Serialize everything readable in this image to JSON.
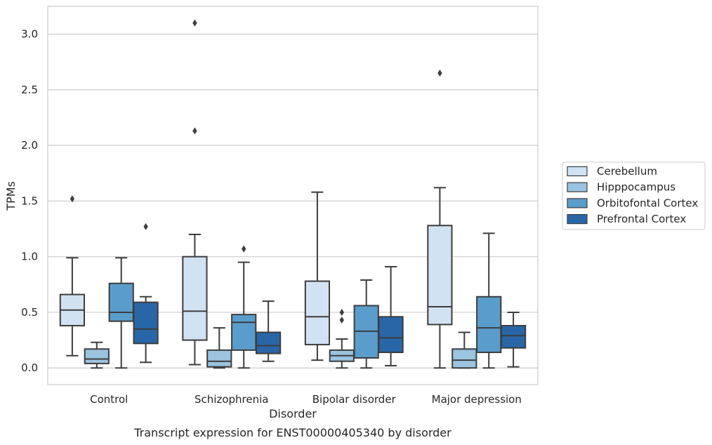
{
  "caption": "Transcript expression for ENST00000405340 by disorder",
  "chart_data": {
    "type": "box",
    "title": "",
    "xlabel": "Disorder",
    "ylabel": "TPMs",
    "ylim": [
      -0.15,
      3.25
    ],
    "yticks": [
      "0.0",
      "0.5",
      "1.0",
      "1.5",
      "2.0",
      "2.5",
      "3.0"
    ],
    "grid": "horizontal",
    "legend_position": "right",
    "categories": [
      "Control",
      "Schizophrenia",
      "Bipolar disorder",
      "Major depression"
    ],
    "series": [
      {
        "name": "Cerebellum",
        "color": "#d1e2f2",
        "boxes": [
          {
            "whisker_low": 0.11,
            "q1": 0.38,
            "median": 0.52,
            "q3": 0.66,
            "whisker_high": 0.99,
            "outliers": [
              1.52
            ]
          },
          {
            "whisker_low": 0.03,
            "q1": 0.25,
            "median": 0.51,
            "q3": 1.0,
            "whisker_high": 1.2,
            "outliers": [
              2.13,
              3.1
            ]
          },
          {
            "whisker_low": 0.07,
            "q1": 0.21,
            "median": 0.46,
            "q3": 0.78,
            "whisker_high": 1.58,
            "outliers": []
          },
          {
            "whisker_low": 0.0,
            "q1": 0.39,
            "median": 0.55,
            "q3": 1.28,
            "whisker_high": 1.62,
            "outliers": [
              2.65
            ]
          }
        ]
      },
      {
        "name": "Hipppocampus",
        "color": "#9ac4e0",
        "boxes": [
          {
            "whisker_low": 0.0,
            "q1": 0.04,
            "median": 0.08,
            "q3": 0.17,
            "whisker_high": 0.23,
            "outliers": []
          },
          {
            "whisker_low": 0.0,
            "q1": 0.01,
            "median": 0.06,
            "q3": 0.16,
            "whisker_high": 0.36,
            "outliers": []
          },
          {
            "whisker_low": 0.0,
            "q1": 0.06,
            "median": 0.11,
            "q3": 0.16,
            "whisker_high": 0.26,
            "outliers": [
              0.43,
              0.5
            ]
          },
          {
            "whisker_low": 0.0,
            "q1": 0.0,
            "median": 0.07,
            "q3": 0.17,
            "whisker_high": 0.32,
            "outliers": []
          }
        ]
      },
      {
        "name": "Orbitofontal Cortex",
        "color": "#5a9dcc",
        "boxes": [
          {
            "whisker_low": 0.0,
            "q1": 0.42,
            "median": 0.5,
            "q3": 0.76,
            "whisker_high": 0.99,
            "outliers": []
          },
          {
            "whisker_low": 0.0,
            "q1": 0.16,
            "median": 0.41,
            "q3": 0.48,
            "whisker_high": 0.95,
            "outliers": [
              1.07
            ]
          },
          {
            "whisker_low": 0.0,
            "q1": 0.09,
            "median": 0.33,
            "q3": 0.56,
            "whisker_high": 0.79,
            "outliers": []
          },
          {
            "whisker_low": 0.0,
            "q1": 0.14,
            "median": 0.36,
            "q3": 0.64,
            "whisker_high": 1.21,
            "outliers": []
          }
        ]
      },
      {
        "name": "Prefrontal Cortex",
        "color": "#2866a8",
        "boxes": [
          {
            "whisker_low": 0.05,
            "q1": 0.22,
            "median": 0.35,
            "q3": 0.59,
            "whisker_high": 0.64,
            "outliers": [
              1.27
            ]
          },
          {
            "whisker_low": 0.06,
            "q1": 0.13,
            "median": 0.2,
            "q3": 0.32,
            "whisker_high": 0.6,
            "outliers": []
          },
          {
            "whisker_low": 0.02,
            "q1": 0.14,
            "median": 0.27,
            "q3": 0.46,
            "whisker_high": 0.91,
            "outliers": []
          },
          {
            "whisker_low": 0.01,
            "q1": 0.18,
            "median": 0.29,
            "q3": 0.38,
            "whisker_high": 0.5,
            "outliers": []
          }
        ]
      }
    ]
  }
}
